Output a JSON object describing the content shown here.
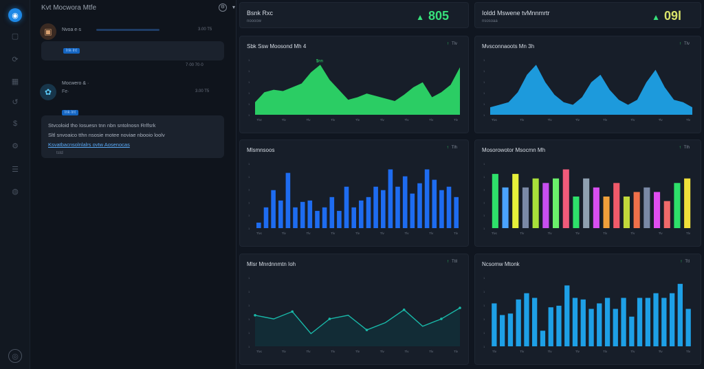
{
  "rail": {
    "items": [
      {
        "name": "home",
        "glyph": "◉",
        "y": 12,
        "active": true
      },
      {
        "name": "files",
        "glyph": "▢"
      },
      {
        "name": "activity",
        "glyph": "⟳"
      },
      {
        "name": "grid",
        "glyph": "▦"
      },
      {
        "name": "history",
        "glyph": "↺"
      },
      {
        "name": "finance",
        "glyph": "$"
      },
      {
        "name": "settings",
        "glyph": "⚙"
      },
      {
        "name": "users",
        "glyph": "☰"
      },
      {
        "name": "globe",
        "glyph": "◍"
      }
    ],
    "footer_glyph": "◎"
  },
  "chat": {
    "title": "Kvt Mocwora Mtfe",
    "title_suffix": "· 4",
    "messages": [
      {
        "name": "Nvoa e·s",
        "time": "3.00 T5",
        "avatar": "▣",
        "link": "lnk·lnt",
        "footer_time": "7·00 70·0"
      },
      {
        "name": "Mocwero & ·",
        "tag": "Fe·",
        "time": "3.00 T5",
        "avatar": "✿",
        "link": "lnk·lnt",
        "lines": [
          "Stvcoloid tho Iosuesn tnn nbn sntolnosn Rrlfsrk",
          "Sltl snvoaico tthn nsosie motee noviae nbooio loolv",
          "Ksvatbacnsolnlalrs ovtw Aosenocas"
        ],
        "highlight_words": "Ksvatbacnsolnlalrs ovtw Aosenocas",
        "footer": "tstd"
      }
    ]
  },
  "stats": [
    {
      "title": "Bsnk Rxc",
      "sub": "noooow",
      "value": "805",
      "color": "#37e07b",
      "arrow": "▲"
    },
    {
      "title": "Ioldd Mswene tvMnnmrtr",
      "sub": "nsosoaa",
      "value": "09l",
      "color": "#d8e26a",
      "arrow": "▲"
    }
  ],
  "cards": [
    {
      "id": "area-green",
      "title": "Sbk Ssw Moosond Mh 4",
      "badge": "Tlv",
      "type": "area",
      "color": "#2ee06a",
      "peak_label": "$nn",
      "peak2_label": "13",
      "values": [
        10,
        18,
        20,
        19,
        22,
        25,
        34,
        40,
        28,
        20,
        12,
        14,
        17,
        15,
        13,
        11,
        16,
        22,
        26,
        14,
        18,
        24,
        38
      ],
      "ticks": [
        "Tlvt",
        "Tlv",
        "Tlv",
        "Tlv",
        "Tlv",
        "Tlv",
        "Tlv",
        "Tlv",
        "Tlv"
      ]
    },
    {
      "id": "area-blue",
      "title": "Mvsconnaoots Mn 3h",
      "badge": "Tlv",
      "type": "area",
      "color": "#1ea7f0",
      "values": [
        6,
        8,
        10,
        18,
        32,
        40,
        26,
        16,
        10,
        8,
        14,
        26,
        32,
        20,
        12,
        8,
        12,
        26,
        36,
        22,
        12,
        10,
        6
      ],
      "ticks": [
        "Tlvc",
        "Tlv",
        "Tlv",
        "Tlv",
        "Tlv",
        "Tlv",
        "Tlv",
        "Tlv"
      ]
    },
    {
      "id": "bars-blue",
      "title": "Mlsmnsoos",
      "badge": "Tlh",
      "type": "bars",
      "color": "#1e6cf0",
      "values": [
        8,
        30,
        55,
        40,
        80,
        30,
        38,
        40,
        25,
        30,
        45,
        25,
        60,
        30,
        40,
        45,
        60,
        55,
        85,
        60,
        75,
        50,
        65,
        85,
        70,
        55,
        60,
        45
      ],
      "ticks": [
        "Tlvc",
        "Tlv",
        "Tlv",
        "Tlv",
        "Tlv",
        "Tlv",
        "Tlv",
        "Tlv",
        "Tlv"
      ]
    },
    {
      "id": "bars-rainbow",
      "title": "Mosorowotor Msocmn Mh",
      "badge": "Tlh",
      "type": "rainbow",
      "values": [
        60,
        45,
        60,
        45,
        55,
        50,
        55,
        65,
        35,
        55,
        45,
        35,
        50,
        35,
        40,
        45,
        40,
        30,
        50,
        55
      ],
      "colors": [
        "#2ee06a",
        "#4aa3ff",
        "#e6f03a",
        "#7a89a6",
        "#a9e03a",
        "#c74ef0",
        "#6af06a",
        "#f05a7a",
        "#2ee06a",
        "#8fa0b0",
        "#d74ef0",
        "#f0a03a",
        "#f05a6a",
        "#c0d93a",
        "#f0704a",
        "#7a89a6",
        "#e04ef0",
        "#f06a6a",
        "#2ee06a",
        "#f0e03a"
      ],
      "ticks": [
        "Tlvc",
        "Tlv",
        "Tlv",
        "Tlv",
        "Tlv",
        "Tlv",
        "Tlv",
        "Tlv"
      ]
    },
    {
      "id": "line-teal",
      "title": "Mlsr Mnrdnnmtn Ioh",
      "badge": "Ttll",
      "type": "line",
      "color": "#19b8a8",
      "values": [
        30,
        28,
        32,
        20,
        28,
        30,
        22,
        26,
        33,
        24,
        28,
        34
      ],
      "ticks": [
        "Tlvc",
        "Tlv",
        "Tlv",
        "Tlv",
        "Tlv",
        "Tlv",
        "Tlv",
        "Tlv",
        "Tlv"
      ]
    },
    {
      "id": "bars-sky",
      "title": "Ncsomw Mtonk",
      "badge": "Ttl",
      "type": "bars",
      "color": "#1ea0e6",
      "values": [
        55,
        40,
        42,
        60,
        68,
        62,
        20,
        50,
        52,
        78,
        62,
        60,
        48,
        55,
        62,
        48,
        62,
        38,
        62,
        62,
        68,
        62,
        68,
        80,
        48
      ],
      "ticks": [
        "Tlv",
        "Tlv",
        "Tlv",
        "Tlv",
        "Tlv",
        "Tlv",
        "Tlv",
        "Tlv"
      ]
    }
  ]
}
